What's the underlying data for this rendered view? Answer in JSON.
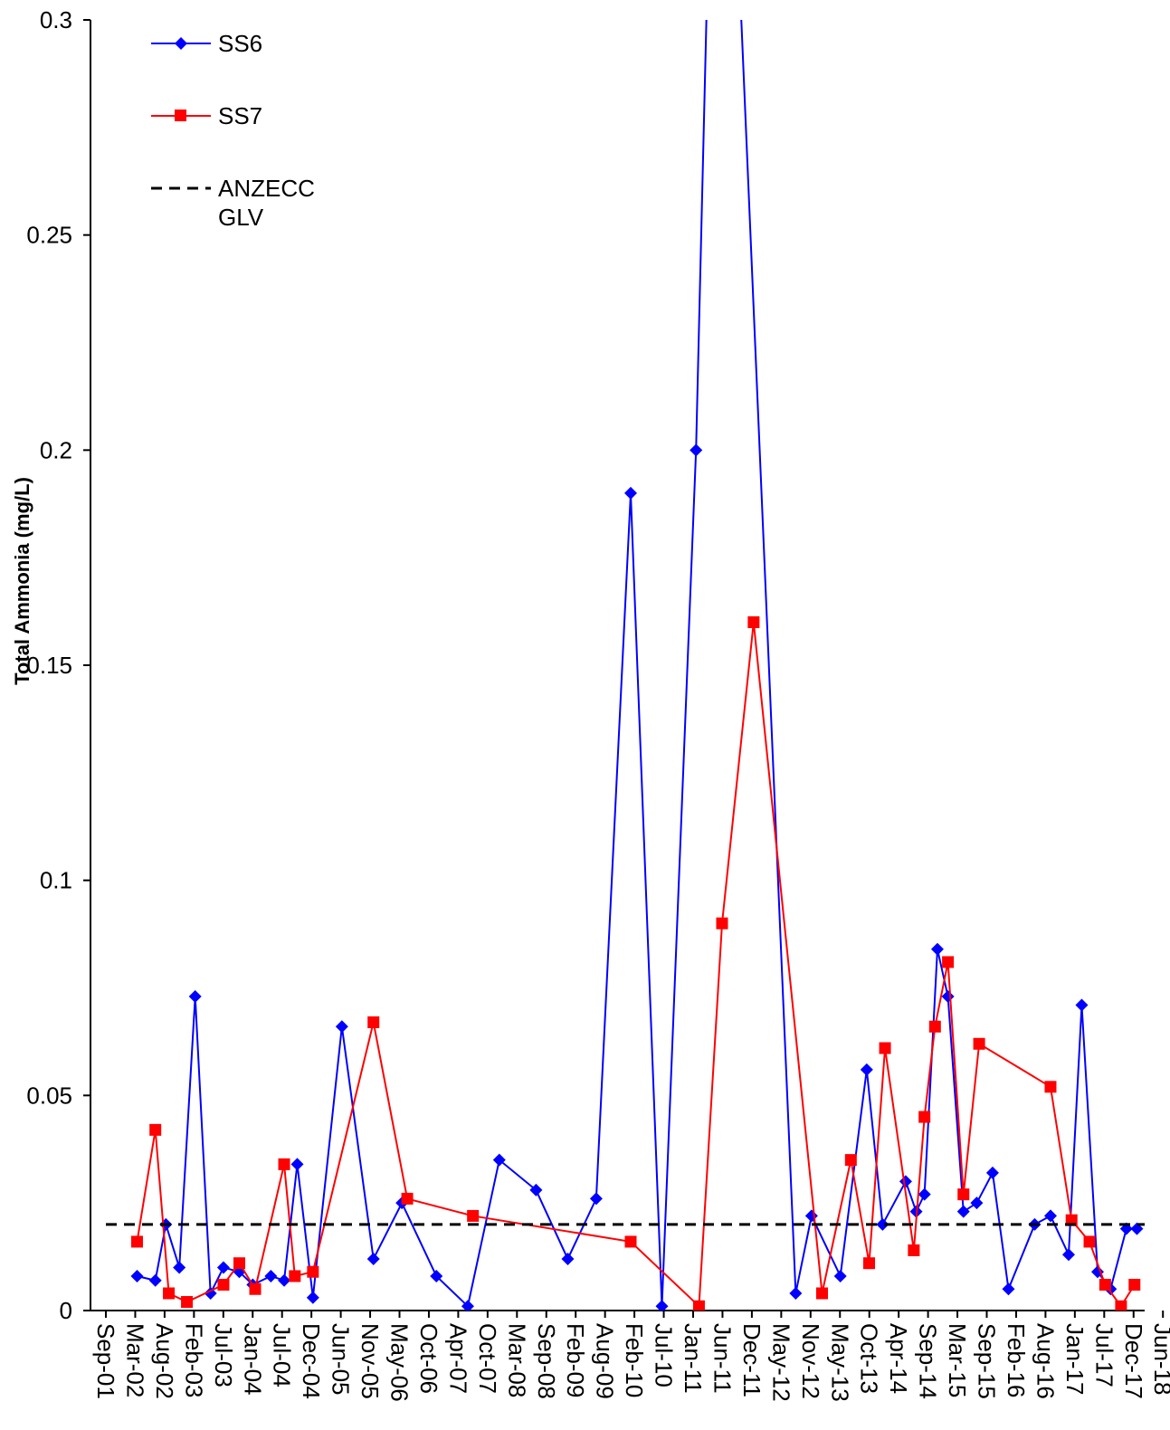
{
  "chart_data": {
    "type": "line",
    "title": "",
    "ylabel": "Total Ammonia (mg/L)",
    "xlabel": "",
    "ylim": [
      0,
      0.3
    ],
    "y_ticks": [
      "0",
      "0.05",
      "0.1",
      "0.15",
      "0.2",
      "0.25",
      "0.3"
    ],
    "y_tick_values": [
      0,
      0.05,
      0.1,
      0.15,
      0.2,
      0.25,
      0.3
    ],
    "x_tick_labels": [
      "Sep-01",
      "Mar-02",
      "Aug-02",
      "Feb-03",
      "Jul-03",
      "Jan-04",
      "Jul-04",
      "Dec-04",
      "Jun-05",
      "Nov-05",
      "May-06",
      "Oct-06",
      "Apr-07",
      "Oct-07",
      "Mar-08",
      "Sep-08",
      "Feb-09",
      "Aug-09",
      "Feb-10",
      "Jul-10",
      "Jan-11",
      "Jun-11",
      "Dec-11",
      "May-12",
      "Nov-12",
      "May-13",
      "Oct-13",
      "Apr-14",
      "Sep-14",
      "Mar-15",
      "Sep-15",
      "Feb-16",
      "Aug-16",
      "Jan-17",
      "Jul-17",
      "Dec-17",
      "Jun-18"
    ],
    "x_range": [
      "2001-09-01",
      "2018-06-15"
    ],
    "grid": false,
    "legend_position": "top-left",
    "series": [
      {
        "name": "SS6",
        "color": "#0000ff",
        "marker": "diamond",
        "x": [
          "2002-03-01",
          "2002-06-15",
          "2002-08-15",
          "2002-11-01",
          "2003-02-01",
          "2003-05-01",
          "2003-07-15",
          "2003-10-15",
          "2004-01-01",
          "2004-04-15",
          "2004-07-01",
          "2004-09-15",
          "2004-12-15",
          "2005-06-01",
          "2005-12-01",
          "2006-05-15",
          "2006-12-01",
          "2007-06-01",
          "2007-12-01",
          "2008-07-01",
          "2009-01-01",
          "2009-06-15",
          "2010-01-01",
          "2010-07-01",
          "2011-01-15",
          "2011-05-15",
          "2011-06-20",
          "2012-08-15",
          "2012-11-15",
          "2013-05-01",
          "2013-10-01",
          "2014-01-01",
          "2014-05-15",
          "2014-07-15",
          "2014-09-01",
          "2014-11-15",
          "2015-01-15",
          "2015-04-15",
          "2015-07-01",
          "2015-10-01",
          "2016-01-01",
          "2016-06-01",
          "2016-09-01",
          "2016-12-15",
          "2017-03-01",
          "2017-06-01",
          "2017-08-15",
          "2017-11-15",
          "2018-01-15"
        ],
        "y": [
          0.008,
          0.007,
          0.02,
          0.01,
          0.073,
          0.004,
          0.01,
          0.009,
          0.006,
          0.008,
          0.007,
          0.034,
          0.003,
          0.066,
          0.012,
          0.025,
          0.008,
          0.001,
          0.035,
          0.028,
          0.012,
          0.026,
          0.19,
          0.001,
          0.2,
          0.4,
          0.4,
          0.004,
          0.022,
          0.008,
          0.056,
          0.02,
          0.03,
          0.023,
          0.027,
          0.084,
          0.073,
          0.023,
          0.025,
          0.032,
          0.005,
          0.02,
          0.022,
          0.013,
          0.071,
          0.009,
          0.005,
          0.019,
          0.019
        ]
      },
      {
        "name": "SS7",
        "color": "#ff0000",
        "marker": "square",
        "x": [
          "2002-03-01",
          "2002-06-15",
          "2002-09-01",
          "2002-12-15",
          "2003-07-15",
          "2003-10-15",
          "2004-01-15",
          "2004-07-01",
          "2004-09-01",
          "2004-12-15",
          "2005-12-01",
          "2006-06-15",
          "2007-07-01",
          "2010-01-01",
          "2011-02-01",
          "2011-06-15",
          "2011-12-15",
          "2013-01-15",
          "2013-07-01",
          "2013-10-15",
          "2014-01-15",
          "2014-07-01",
          "2014-09-01",
          "2014-11-01",
          "2015-01-15",
          "2015-04-15",
          "2015-07-15",
          "2016-09-01",
          "2017-01-01",
          "2017-04-15",
          "2017-07-15",
          "2017-10-15",
          "2018-01-01"
        ],
        "y": [
          0.016,
          0.042,
          0.004,
          0.002,
          0.006,
          0.011,
          0.005,
          0.034,
          0.008,
          0.009,
          0.067,
          0.026,
          0.022,
          0.016,
          0.001,
          0.09,
          0.16,
          0.004,
          0.035,
          0.011,
          0.061,
          0.014,
          0.045,
          0.066,
          0.081,
          0.027,
          0.062,
          0.052,
          0.021,
          0.016,
          0.006,
          0.001,
          0.006
        ]
      },
      {
        "name": "ANZECC\nGLV",
        "color": "#000000",
        "style": "dashed",
        "x": [
          "2001-09-01",
          "2018-06-15"
        ],
        "y": [
          0.02,
          0.02
        ]
      }
    ],
    "legend_entries": [
      "SS6",
      "SS7",
      "ANZECC",
      "GLV"
    ]
  }
}
